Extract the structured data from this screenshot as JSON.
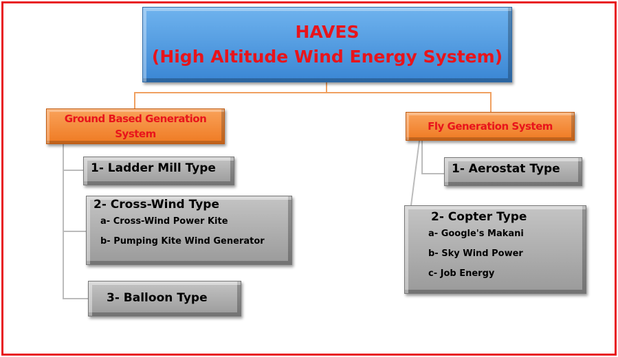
{
  "root": {
    "lines": [
      "HAVES",
      "(High Altitude Wind Energy System)"
    ]
  },
  "branches": [
    {
      "lines": [
        "Ground Based Generation",
        "System"
      ],
      "children": [
        {
          "label": "1- Ladder Mill Type"
        },
        {
          "label": "2- Cross-Wind Type",
          "items": [
            "a- Cross-Wind Power Kite",
            "b- Pumping Kite Wind Generator"
          ]
        },
        {
          "label": "3- Balloon Type"
        }
      ]
    },
    {
      "lines": [
        "Fly Generation System"
      ],
      "children": [
        {
          "label": "1- Aerostat Type"
        },
        {
          "label": "2- Copter Type",
          "items": [
            "a- Google's Makani",
            "b- Sky Wind Power",
            "c- Job Energy"
          ]
        }
      ]
    }
  ]
}
